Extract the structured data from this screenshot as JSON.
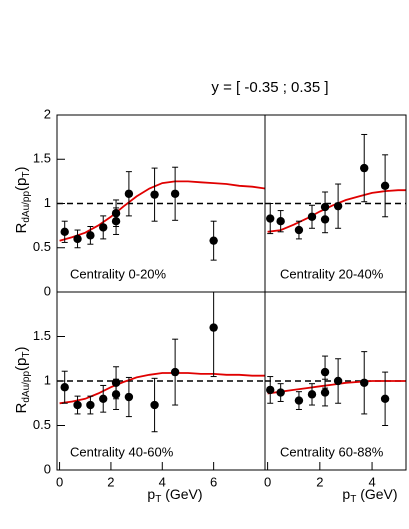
{
  "title": "y = [ -0.35 ; 0.35 ]",
  "x_label": [
    "p",
    "T",
    " (GeV)"
  ],
  "y_label": [
    "R",
    "dAu/pp",
    "(p",
    "T",
    ")"
  ],
  "chart_data": [
    {
      "type": "scatter",
      "label": "Centrality 0-20%",
      "color": "#000000",
      "x": [
        0.2,
        0.7,
        1.2,
        1.7,
        2.2,
        2.2,
        2.7,
        3.7,
        4.5,
        6.0
      ],
      "values": [
        0.68,
        0.6,
        0.64,
        0.73,
        0.8,
        0.89,
        1.11,
        1.1,
        1.11,
        0.58
      ],
      "errors": [
        0.12,
        0.1,
        0.1,
        0.13,
        0.15,
        0.15,
        0.25,
        0.3,
        0.3,
        0.22
      ],
      "curve": {
        "color": "#e00000",
        "x": [
          0,
          0.5,
          1,
          1.5,
          2,
          2.5,
          3,
          3.5,
          4,
          4.5,
          5,
          5.5,
          6,
          6.5,
          7,
          7.5,
          8
        ],
        "values": [
          0.58,
          0.62,
          0.67,
          0.75,
          0.85,
          0.97,
          1.08,
          1.17,
          1.23,
          1.25,
          1.25,
          1.24,
          1.23,
          1.22,
          1.2,
          1.19,
          1.17
        ]
      },
      "ref_line": 1,
      "xlim": [
        -0.1,
        8.0
      ],
      "ylim": [
        0,
        2
      ],
      "yticks": [
        0,
        0.5,
        1,
        1.5,
        2
      ]
    },
    {
      "type": "scatter",
      "label": "Centrality 20-40%",
      "color": "#000000",
      "x": [
        0.1,
        0.5,
        1.2,
        1.7,
        2.2,
        2.2,
        2.7,
        3.7,
        4.5
      ],
      "values": [
        0.83,
        0.8,
        0.7,
        0.85,
        0.82,
        0.96,
        0.97,
        1.4,
        1.2
      ],
      "errors": [
        0.17,
        0.12,
        0.1,
        0.13,
        0.15,
        0.17,
        0.25,
        0.38,
        0.35
      ],
      "curve": {
        "color": "#e00000",
        "x": [
          0,
          0.5,
          1,
          1.5,
          2,
          2.5,
          3,
          3.5,
          4,
          4.5,
          5,
          5.5
        ],
        "values": [
          0.68,
          0.7,
          0.76,
          0.83,
          0.91,
          0.98,
          1.04,
          1.08,
          1.12,
          1.14,
          1.15,
          1.15
        ]
      },
      "ref_line": 1,
      "xlim": [
        -0.1,
        5.3
      ],
      "ylim": [
        0,
        2
      ]
    },
    {
      "type": "scatter",
      "label": "Centrality 40-60%",
      "color": "#000000",
      "x": [
        0.2,
        0.7,
        1.2,
        1.7,
        2.2,
        2.2,
        2.7,
        3.7,
        4.5,
        6.0
      ],
      "values": [
        0.93,
        0.73,
        0.73,
        0.8,
        0.85,
        0.98,
        0.82,
        0.73,
        1.1,
        1.6
      ],
      "errors": [
        0.18,
        0.1,
        0.1,
        0.15,
        0.17,
        0.18,
        0.22,
        0.3,
        0.37,
        0.55
      ],
      "curve": {
        "color": "#e00000",
        "x": [
          0,
          0.5,
          1,
          1.5,
          2,
          2.5,
          3,
          3.5,
          4,
          4.5,
          5,
          5.5,
          6,
          6.5,
          7,
          7.5,
          8
        ],
        "values": [
          0.75,
          0.77,
          0.8,
          0.86,
          0.93,
          0.99,
          1.04,
          1.07,
          1.09,
          1.09,
          1.09,
          1.08,
          1.08,
          1.07,
          1.07,
          1.06,
          1.06
        ]
      },
      "ref_line": 1,
      "xlim": [
        -0.1,
        8.0
      ],
      "ylim": [
        0,
        2
      ],
      "yticks": [
        0,
        0.5,
        1,
        1.5
      ],
      "xticks": [
        0,
        2,
        4,
        6
      ]
    },
    {
      "type": "scatter",
      "label": "Centrality 60-88%",
      "color": "#000000",
      "x": [
        0.1,
        0.5,
        1.2,
        1.7,
        2.2,
        2.2,
        2.7,
        3.7,
        4.5
      ],
      "values": [
        0.9,
        0.87,
        0.78,
        0.85,
        0.87,
        1.1,
        1.0,
        0.98,
        0.8
      ],
      "errors": [
        0.15,
        0.1,
        0.1,
        0.12,
        0.15,
        0.18,
        0.25,
        0.35,
        0.3
      ],
      "curve": {
        "color": "#e00000",
        "x": [
          0,
          0.5,
          1,
          1.5,
          2,
          2.5,
          3,
          3.5,
          4,
          4.5,
          5,
          5.5
        ],
        "values": [
          0.86,
          0.88,
          0.9,
          0.92,
          0.94,
          0.96,
          0.98,
          0.99,
          1.0,
          1.0,
          1.0,
          1.0
        ]
      },
      "ref_line": 1,
      "xlim": [
        -0.1,
        5.3
      ],
      "ylim": [
        0,
        2
      ],
      "xticks": [
        0,
        2,
        4
      ]
    }
  ]
}
